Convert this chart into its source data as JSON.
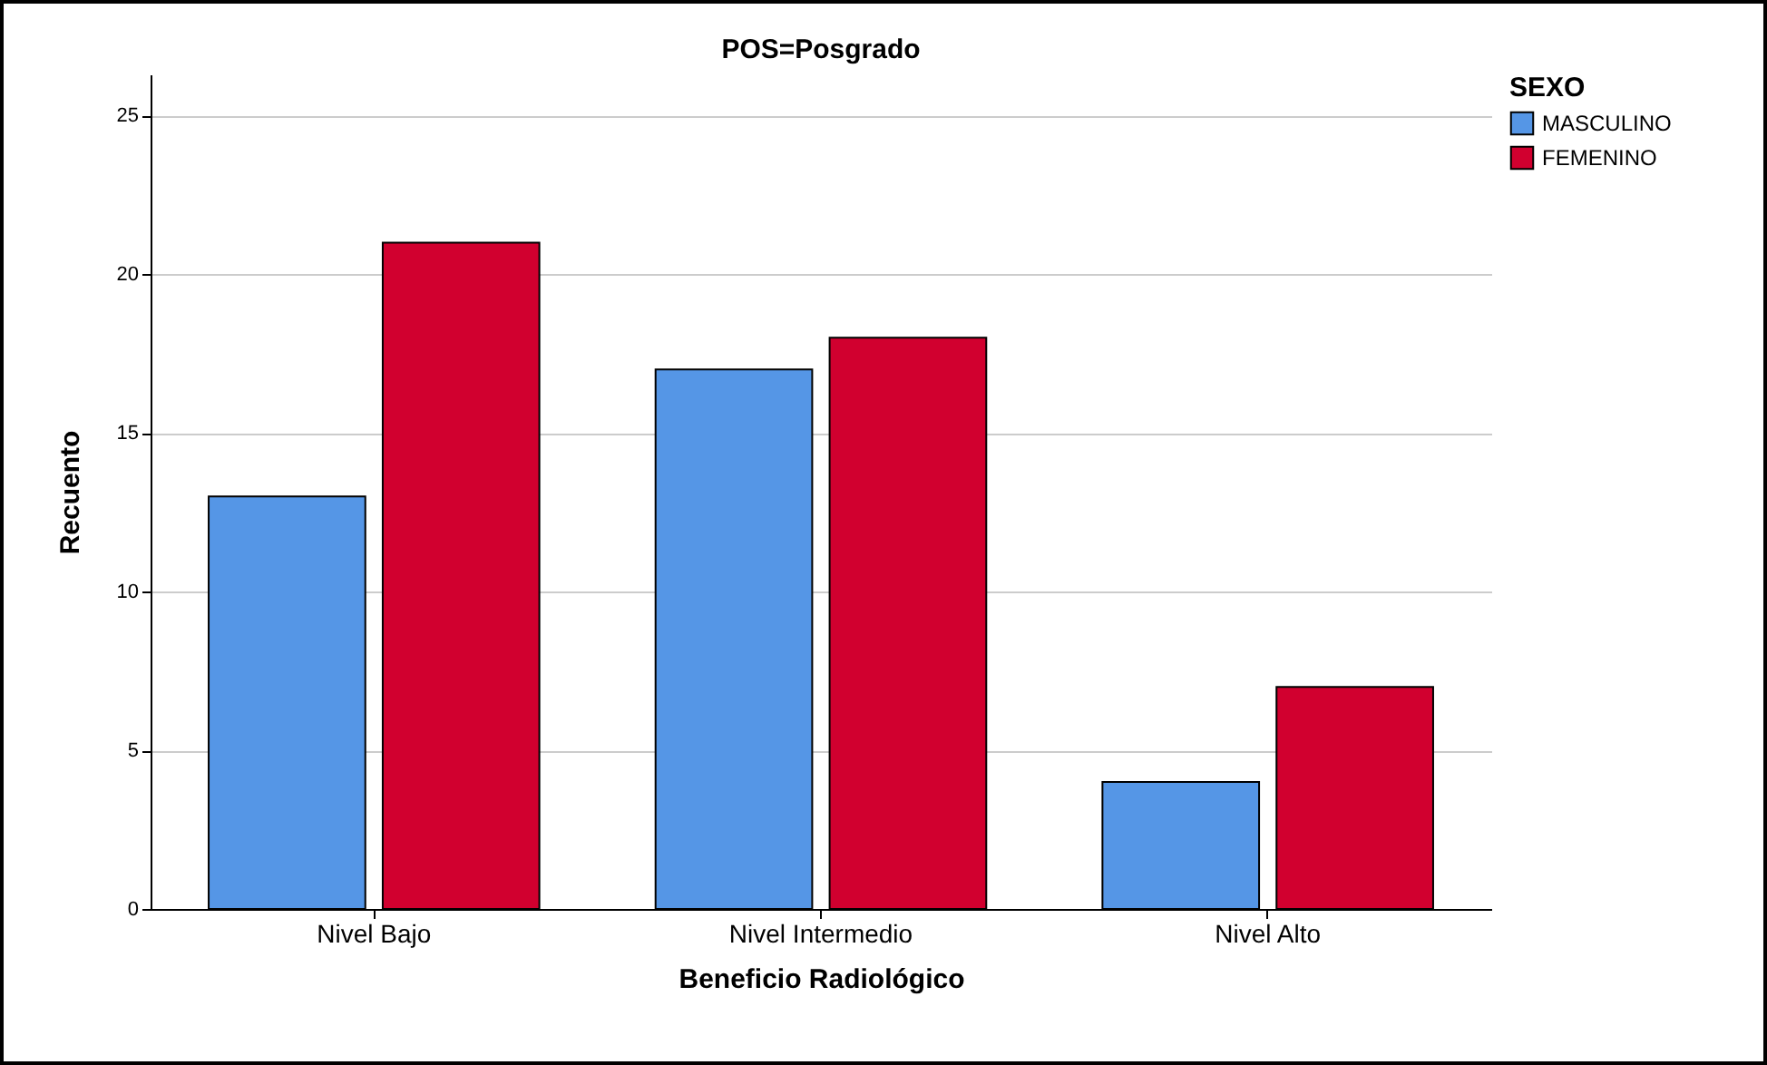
{
  "chart_data": {
    "type": "bar",
    "title": "POS=Posgrado",
    "xlabel": "Beneficio Radiológico",
    "ylabel": "Recuento",
    "legend_title": "SEXO",
    "categories": [
      "Nivel Bajo",
      "Nivel Intermedio",
      "Nivel Alto"
    ],
    "series": [
      {
        "name": "MASCULINO",
        "color": "#5596e6",
        "values": [
          13,
          17,
          4
        ]
      },
      {
        "name": "FEMENINO",
        "color": "#d1002f",
        "values": [
          21,
          18,
          7
        ]
      }
    ],
    "ylim": [
      0,
      26.3
    ],
    "yticks": [
      0,
      5,
      10,
      15,
      20,
      25
    ],
    "grid": "y",
    "legend": "top right"
  }
}
